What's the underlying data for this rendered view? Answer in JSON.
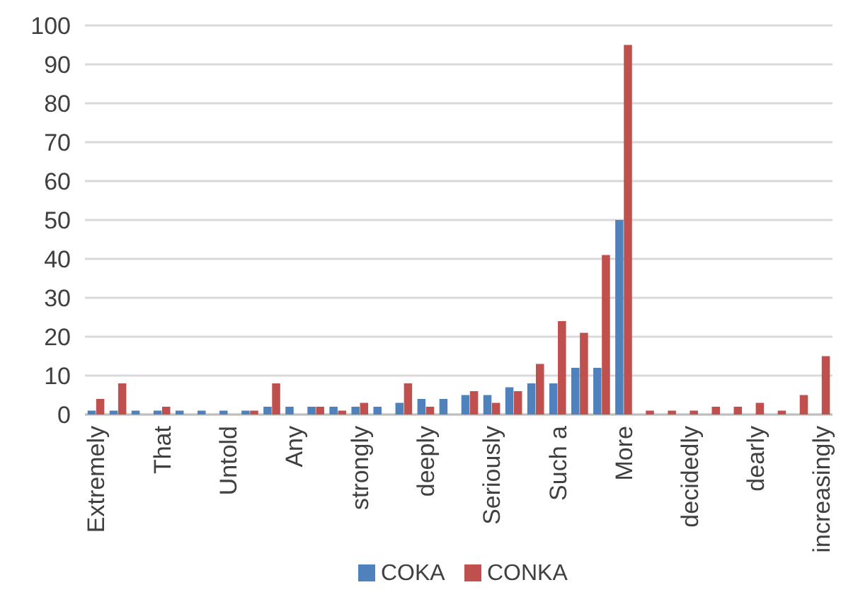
{
  "chart_data": {
    "type": "bar",
    "categories": [
      "Extremely",
      null,
      null,
      "That",
      null,
      null,
      "Untold",
      null,
      null,
      "Any",
      null,
      null,
      "strongly",
      null,
      null,
      "deeply",
      null,
      null,
      "Seriously",
      null,
      null,
      "Such a",
      null,
      null,
      "More",
      null,
      null,
      "decidedly",
      null,
      null,
      "dearly",
      null,
      null,
      "increasingly"
    ],
    "series": [
      {
        "name": "COKA",
        "color": "#4f81bd",
        "values": [
          1,
          1,
          1,
          1,
          1,
          1,
          1,
          1,
          2,
          2,
          2,
          2,
          2,
          2,
          3,
          4,
          4,
          5,
          5,
          7,
          8,
          8,
          12,
          12,
          50,
          0,
          0,
          0,
          0,
          0,
          0,
          0,
          0,
          0
        ]
      },
      {
        "name": "CONKA",
        "color": "#c0504d",
        "values": [
          4,
          8,
          0,
          2,
          0,
          0,
          0,
          1,
          8,
          0,
          2,
          1,
          3,
          0,
          8,
          2,
          0,
          6,
          3,
          6,
          13,
          24,
          21,
          41,
          95,
          1,
          1,
          1,
          2,
          2,
          3,
          1,
          5,
          15
        ]
      }
    ],
    "ylim": [
      0,
      100
    ],
    "yticks": [
      0,
      10,
      20,
      30,
      40,
      50,
      60,
      70,
      80,
      90,
      100
    ],
    "grid": "y",
    "legend": "bottom"
  }
}
